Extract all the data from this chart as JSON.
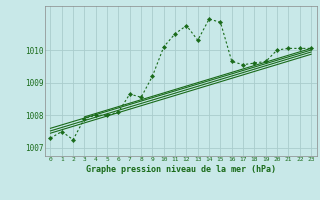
{
  "title": "Graphe pression niveau de la mer (hPa)",
  "background_color": "#c8e8e8",
  "grid_color": "#aacccc",
  "line_color": "#1a6b1a",
  "xlim": [
    -0.5,
    23.5
  ],
  "ylim": [
    1006.75,
    1011.35
  ],
  "yticks": [
    1007,
    1008,
    1009,
    1010
  ],
  "xticks": [
    0,
    1,
    2,
    3,
    4,
    5,
    6,
    7,
    8,
    9,
    10,
    11,
    12,
    13,
    14,
    15,
    16,
    17,
    18,
    19,
    20,
    21,
    22,
    23
  ],
  "main_series": [
    [
      0,
      1007.3
    ],
    [
      1,
      1007.5
    ],
    [
      2,
      1007.25
    ],
    [
      3,
      1007.9
    ],
    [
      4,
      1008.0
    ],
    [
      5,
      1008.0
    ],
    [
      6,
      1008.1
    ],
    [
      7,
      1008.65
    ],
    [
      8,
      1008.55
    ],
    [
      9,
      1009.2
    ],
    [
      10,
      1010.1
    ],
    [
      11,
      1010.5
    ],
    [
      12,
      1010.75
    ],
    [
      13,
      1010.3
    ],
    [
      14,
      1010.95
    ],
    [
      15,
      1010.85
    ],
    [
      16,
      1009.65
    ],
    [
      17,
      1009.55
    ],
    [
      18,
      1009.6
    ],
    [
      19,
      1009.65
    ],
    [
      20,
      1010.0
    ],
    [
      21,
      1010.05
    ],
    [
      22,
      1010.05
    ],
    [
      23,
      1010.05
    ]
  ],
  "trend_lines": [
    [
      [
        0,
        1007.6
      ],
      [
        23,
        1010.0
      ]
    ],
    [
      [
        0,
        1007.52
      ],
      [
        23,
        1009.94
      ]
    ],
    [
      [
        0,
        1007.45
      ],
      [
        23,
        1009.87
      ]
    ],
    [
      [
        3,
        1007.95
      ],
      [
        23,
        1010.05
      ]
    ]
  ]
}
